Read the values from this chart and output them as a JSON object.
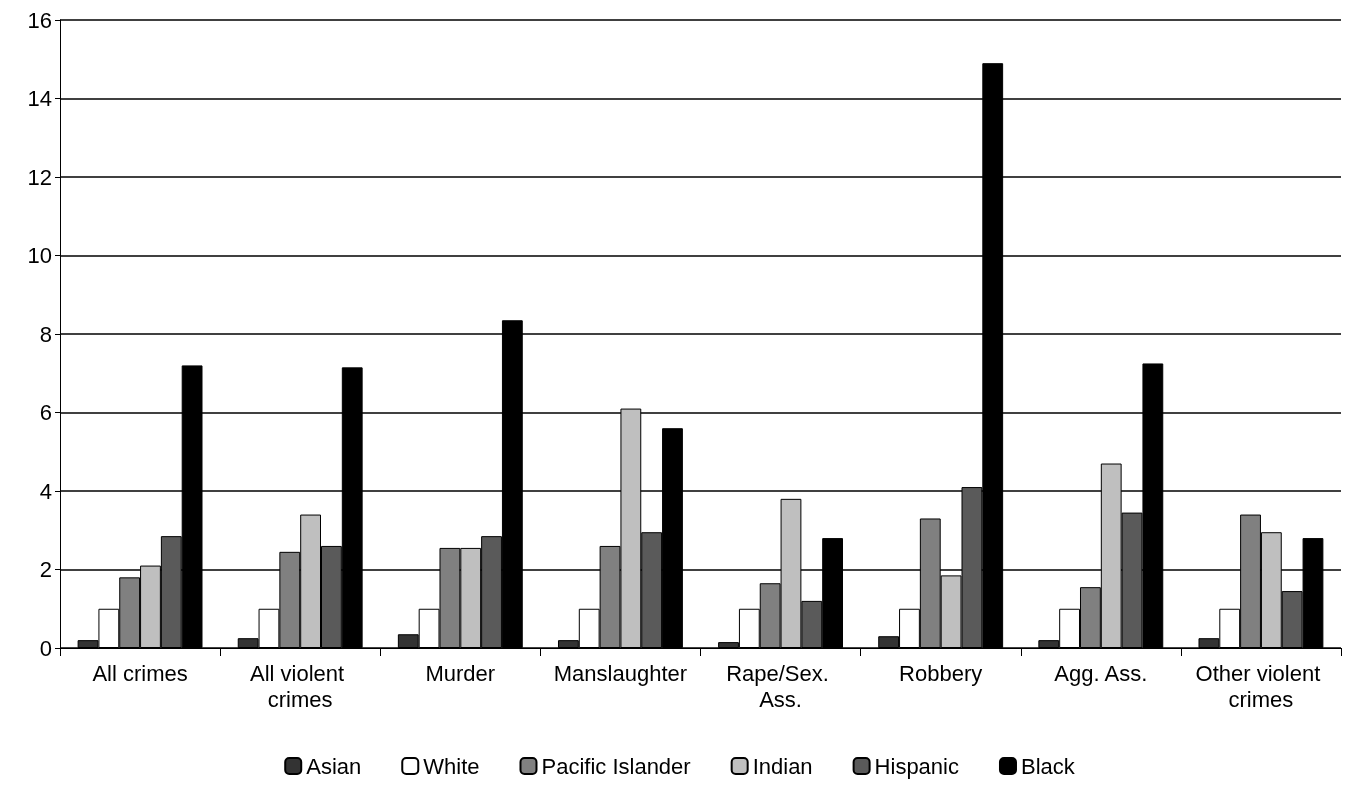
{
  "chart_data": {
    "type": "bar",
    "categories": [
      "All crimes",
      "All violent crimes",
      "Murder",
      "Manslaughter",
      "Rape/Sex. Ass.",
      "Robbery",
      "Agg. Ass.",
      "Other violent crimes"
    ],
    "series": [
      {
        "name": "Asian",
        "color": "#333333",
        "values": [
          0.2,
          0.25,
          0.35,
          0.2,
          0.15,
          0.3,
          0.2,
          0.25
        ]
      },
      {
        "name": "White",
        "color": "#ffffff",
        "values": [
          1,
          1,
          1,
          1,
          1,
          1,
          1,
          1
        ]
      },
      {
        "name": "Pacific Islander",
        "color": "#808080",
        "values": [
          1.8,
          2.45,
          2.55,
          2.6,
          1.65,
          3.3,
          1.55,
          3.4
        ]
      },
      {
        "name": "Indian",
        "color": "#bfbfbf",
        "values": [
          2.1,
          3.4,
          2.55,
          6.1,
          3.8,
          1.85,
          4.7,
          2.95
        ]
      },
      {
        "name": "Hispanic",
        "color": "#5a5a5a",
        "values": [
          2.85,
          2.6,
          2.85,
          2.95,
          1.2,
          4.1,
          3.45,
          1.45
        ]
      },
      {
        "name": "Black",
        "color": "#000000",
        "values": [
          7.2,
          7.15,
          8.35,
          5.6,
          2.8,
          14.9,
          7.25,
          2.8
        ]
      }
    ],
    "ylim": [
      0,
      16
    ],
    "yticks": [
      0,
      2,
      4,
      6,
      8,
      10,
      12,
      14,
      16
    ],
    "grid": "y",
    "legend": "bottom"
  }
}
